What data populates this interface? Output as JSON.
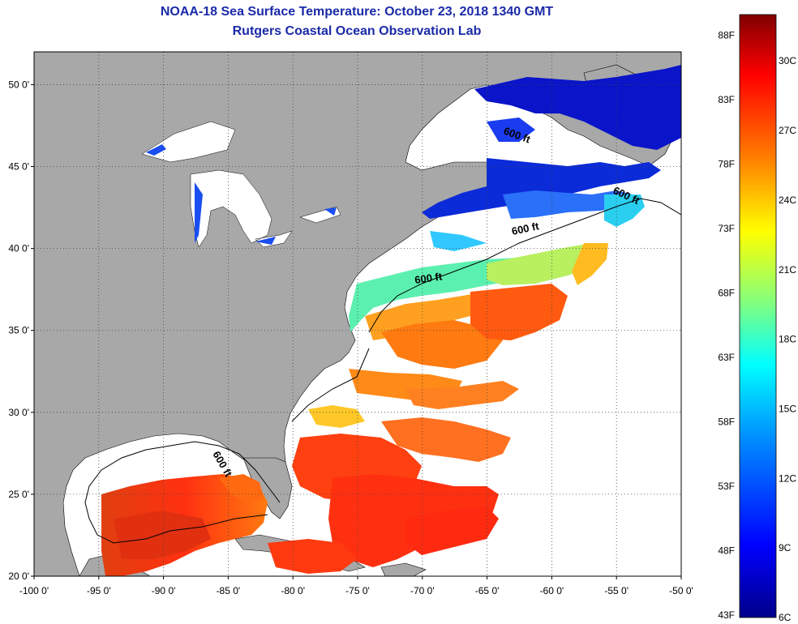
{
  "title": {
    "line1": "NOAA-18 Sea Surface Temperature:  October 23, 2018 1340 GMT",
    "line2": "Rutgers Coastal Ocean Observation Lab"
  },
  "map": {
    "lon_labels": [
      "-100 0'",
      "-95 0'",
      "-90 0'",
      "-85 0'",
      "-80 0'",
      "-75 0'",
      "-70 0'",
      "-65 0'",
      "-60 0'",
      "-55 0'",
      "-50 0'"
    ],
    "lat_labels": [
      "50 0'",
      "45 0'",
      "40 0'",
      "35 0'",
      "30 0'",
      "25 0'",
      "20 0'"
    ],
    "contour_label": "600 ft",
    "colors": {
      "land": "#a8a8a8",
      "no_data": "#ffffff"
    }
  },
  "colorbar": {
    "fahrenheit_labels": [
      "88F",
      "83F",
      "78F",
      "73F",
      "68F",
      "63F",
      "58F",
      "53F",
      "48F",
      "43F"
    ],
    "celsius_labels": [
      "30C",
      "27C",
      "24C",
      "21C",
      "18C",
      "15C",
      "12C",
      "9C",
      "6C"
    ],
    "range_c": [
      6,
      32
    ],
    "colormap": [
      "#00008a",
      "#0000ff",
      "#0080ff",
      "#00ffff",
      "#80ff80",
      "#ffff00",
      "#ff8000",
      "#ff0000",
      "#800000"
    ]
  }
}
